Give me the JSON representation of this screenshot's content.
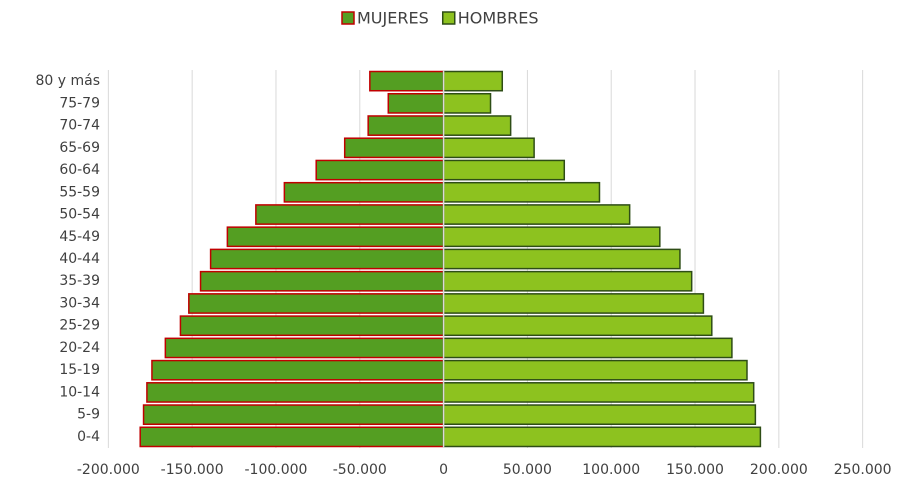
{
  "chart_data": {
    "type": "pyramid",
    "categories": [
      "80 y más",
      "75-79",
      "70-74",
      "65-69",
      "60-64",
      "55-59",
      "50-54",
      "45-49",
      "40-44",
      "35-39",
      "30-34",
      "25-29",
      "20-24",
      "15-19",
      "10-14",
      "5-9",
      "0-4"
    ],
    "series": [
      {
        "name": "MUJERES",
        "color": "#549e22",
        "stroke": "#c00000",
        "values": [
          -44000,
          -33000,
          -45000,
          -59000,
          -76000,
          -95000,
          -112000,
          -129000,
          -139000,
          -145000,
          -152000,
          -157000,
          -166000,
          -174000,
          -177000,
          -179000,
          -181000
        ]
      },
      {
        "name": "HOMBRES",
        "color": "#8dc21f",
        "stroke": "#2e4d16",
        "values": [
          35000,
          28000,
          40000,
          54000,
          72000,
          93000,
          111000,
          129000,
          141000,
          148000,
          155000,
          160000,
          172000,
          181000,
          185000,
          186000,
          189000
        ]
      }
    ],
    "xlim": [
      -202000,
      252000
    ],
    "xticks": [
      {
        "value": -200000,
        "label": "-200.000"
      },
      {
        "value": -150000,
        "label": "-150.000"
      },
      {
        "value": -100000,
        "label": "-100.000"
      },
      {
        "value": -50000,
        "label": "-50.000"
      },
      0,
      {
        "value": 50000,
        "label": "50.000"
      },
      {
        "value": 100000,
        "label": "100.000"
      },
      {
        "value": 150000,
        "label": "150.000"
      },
      {
        "value": 200000,
        "label": "200.000"
      },
      {
        "value": 250000,
        "label": "250.000"
      }
    ],
    "grid": true,
    "legend": "top"
  }
}
